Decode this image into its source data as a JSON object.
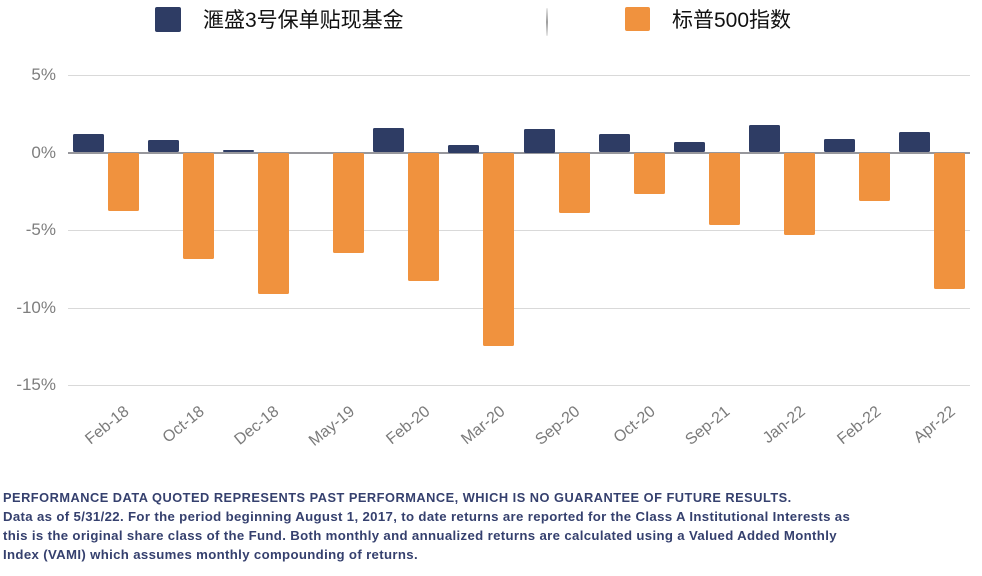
{
  "chart_data": {
    "type": "bar",
    "title": "",
    "categories": [
      "Feb-18",
      "Oct-18",
      "Dec-18",
      "May-19",
      "Feb-20",
      "Mar-20",
      "Sep-20",
      "Oct-20",
      "Sep-21",
      "Jan-22",
      "Feb-22",
      "Apr-22"
    ],
    "series": [
      {
        "name": "滙盛3号保单贴现基金",
        "color": "#2e3c64",
        "values": [
          1.2,
          0.8,
          0.15,
          0.0,
          1.6,
          0.5,
          1.5,
          1.2,
          0.7,
          1.8,
          0.9,
          1.3
        ]
      },
      {
        "name": "标普500指数",
        "color": "#f0923e",
        "values": [
          -3.8,
          -6.9,
          -9.1,
          -6.5,
          -8.3,
          -12.5,
          -3.9,
          -2.7,
          -4.7,
          -5.3,
          -3.1,
          -8.8
        ]
      }
    ],
    "xlabel": "",
    "ylabel": "",
    "y_ticks": [
      "5%",
      "0%",
      "-5%",
      "-10%",
      "-15%"
    ],
    "ylim": [
      -15,
      5
    ],
    "grid": true,
    "legend_position": "top",
    "units": "percent monthly return"
  },
  "footer": {
    "line1": "PERFORMANCE DATA QUOTED REPRESENTS PAST PERFORMANCE, WHICH IS NO GUARANTEE OF FUTURE RESULTS.",
    "line2": "Data as of 5/31/22. For the period beginning August 1, 2017, to date returns are reported for the Class A Institutional Interests as",
    "line3": "this is the original share class of the Fund. Both monthly and annualized returns are calculated using a Valued Added Monthly",
    "line4": "Index (VAMI) which assumes monthly compounding of returns."
  },
  "colors": {
    "fund_bar": "#2e3c64",
    "index_bar": "#f0923e",
    "gridline": "#d9d9d9",
    "zero_line": "#97979c",
    "tick_text": "#7e7e7e",
    "footer_text": "#35406e"
  }
}
